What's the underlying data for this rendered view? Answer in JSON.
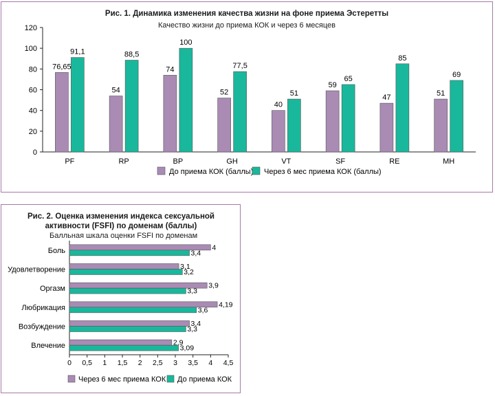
{
  "colors": {
    "purple": "#a98bb4",
    "teal": "#19b89c",
    "border": "#a57aa6",
    "axis": "#222222"
  },
  "chart_data": [
    {
      "type": "bar",
      "title": "Рис. 1. Динамика изменения качества жизни на фоне приема Эстеретты",
      "subtitle": "Качество жизни до приема КОК и через 6 месяцев",
      "categories": [
        "PF",
        "RP",
        "BP",
        "GH",
        "VT",
        "SF",
        "RE",
        "MH"
      ],
      "series": [
        {
          "name": "До приема КОК (баллы)",
          "values": [
            76.65,
            54,
            74,
            52,
            40,
            59,
            47,
            51
          ],
          "labels": [
            "76,65",
            "54",
            "74",
            "52",
            "40",
            "59",
            "47",
            "51"
          ]
        },
        {
          "name": "Через 6 мес приема КОК (баллы)",
          "values": [
            91.1,
            88.5,
            100,
            77.5,
            51,
            65,
            85,
            69
          ],
          "labels": [
            "91,1",
            "88,5",
            "100",
            "77,5",
            "51",
            "65",
            "85",
            "69"
          ]
        }
      ],
      "ylim": [
        0,
        120
      ],
      "yticks": [
        "0",
        "20",
        "40",
        "60",
        "80",
        "100",
        "120"
      ],
      "legend_position": "bottom"
    },
    {
      "type": "bar",
      "orientation": "horizontal",
      "title": "Рис. 2. Оценка изменения индекса сексуальной активности (FSFI) по доменам (баллы)",
      "subtitle": "Балльная шкала оценки FSFI по доменам",
      "categories": [
        "Боль",
        "Удовлетворение",
        "Оргазм",
        "Любрикация",
        "Возбуждение",
        "Влечение"
      ],
      "series": [
        {
          "name": "Через 6 мес приема КОК",
          "values": [
            4,
            3.1,
            3.9,
            4.19,
            3.4,
            2.9
          ],
          "labels": [
            "4",
            "3,1",
            "3,9",
            "4,19",
            "3,4",
            "2,9"
          ]
        },
        {
          "name": "До приема КОК",
          "values": [
            3.4,
            3.2,
            3.3,
            3.6,
            3.3,
            3.09
          ],
          "labels": [
            "3,4",
            "3,2",
            "3,3",
            "3,6",
            "3,3",
            "3,09"
          ]
        }
      ],
      "xlim": [
        0,
        4.5
      ],
      "xticks": [
        "0",
        "0,5",
        "1",
        "1,5",
        "2",
        "2,5",
        "3",
        "3,5",
        "4",
        "4,5"
      ],
      "legend_position": "bottom"
    }
  ]
}
